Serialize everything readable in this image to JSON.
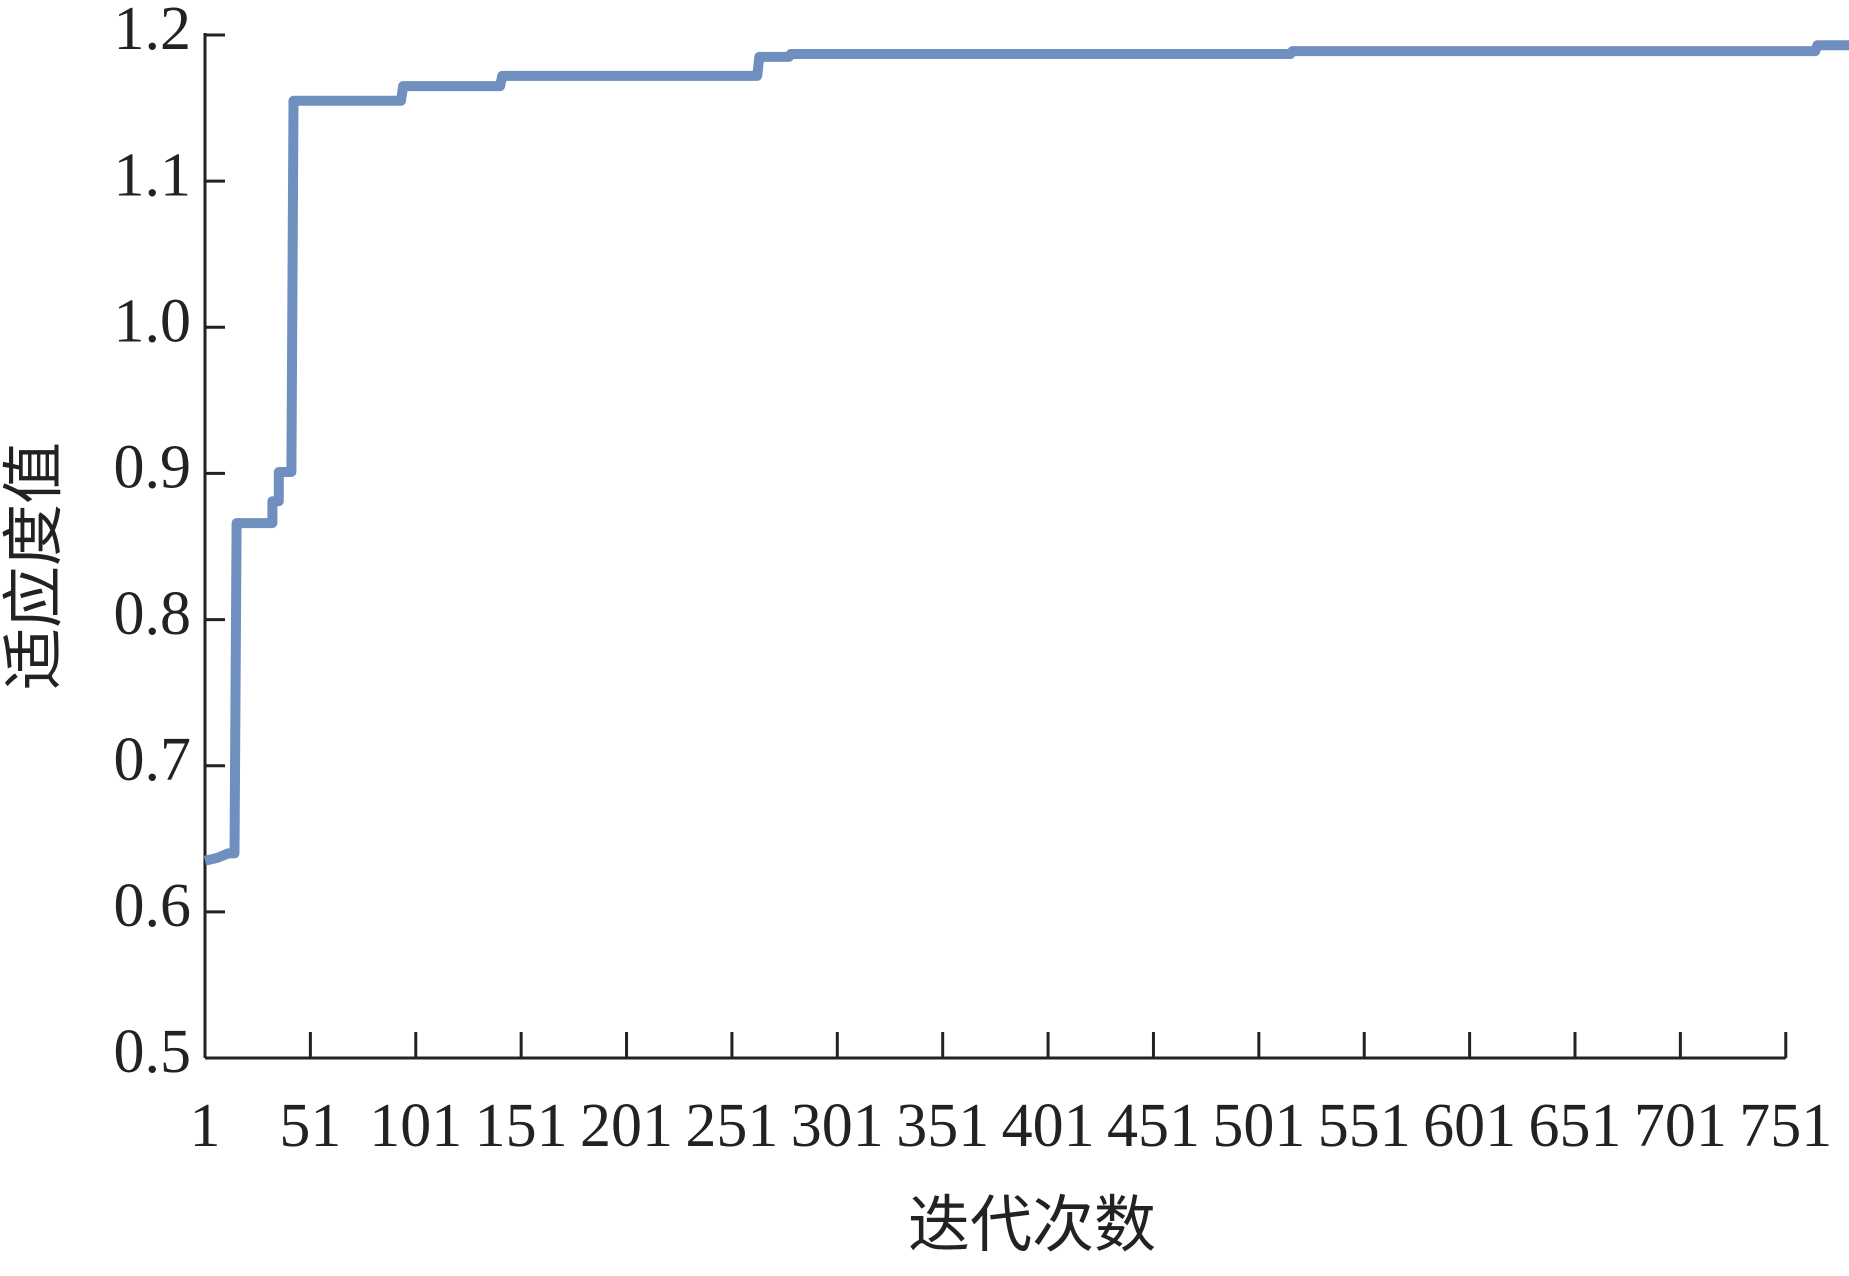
{
  "chart_data": {
    "type": "line",
    "x_label": "迭代次数",
    "y_label": "适应度值",
    "series": [
      {
        "color": "#6f8fbf",
        "x": [
          1,
          7,
          12,
          15,
          16,
          33,
          33,
          36,
          36,
          42,
          43,
          94,
          95,
          141,
          142,
          263,
          264,
          278,
          279,
          516,
          517,
          765,
          766,
          781
        ],
        "values": [
          0.635,
          0.637,
          0.64,
          0.64,
          0.866,
          0.866,
          0.881,
          0.881,
          0.901,
          0.901,
          1.155,
          1.155,
          1.165,
          1.165,
          1.172,
          1.172,
          1.185,
          1.185,
          1.187,
          1.187,
          1.189,
          1.189,
          1.193,
          1.193
        ]
      }
    ],
    "xlim": [
      1,
      781
    ],
    "xticks": [
      1,
      51,
      101,
      151,
      201,
      251,
      301,
      351,
      401,
      451,
      501,
      551,
      601,
      651,
      701,
      751
    ],
    "ylim": [
      0.5,
      1.2
    ],
    "yticks": [
      0.5,
      0.6,
      0.7,
      0.8,
      0.9,
      {
        "value": 1.0,
        "label": "1.0"
      },
      1.1,
      1.2
    ]
  }
}
